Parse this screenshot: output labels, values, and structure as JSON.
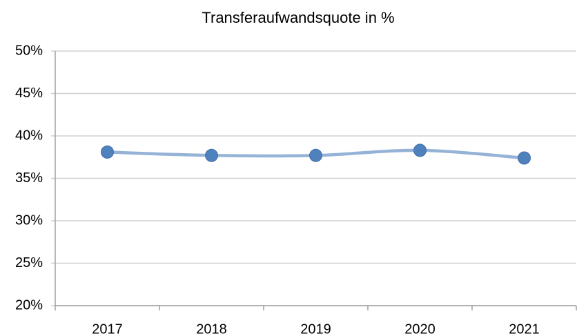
{
  "chart_data": {
    "type": "line",
    "title": "Transferaufwandsquote in %",
    "categories": [
      "2017",
      "2018",
      "2019",
      "2020",
      "2021"
    ],
    "series": [
      {
        "name": "Transferaufwandsquote",
        "line_color": "#95b3d7",
        "color": "#4f81bd",
        "values": [
          38.1,
          37.7,
          37.7,
          38.3,
          37.4
        ]
      }
    ],
    "ylim": [
      20,
      50
    ],
    "yticks": [
      {
        "value": 20,
        "label": "20%"
      },
      {
        "value": 25,
        "label": "25%"
      },
      {
        "value": 30,
        "label": "30%"
      },
      {
        "value": 35,
        "label": "35%"
      },
      {
        "value": 40,
        "label": "40%"
      },
      {
        "value": 45,
        "label": "45%"
      },
      {
        "value": 50,
        "label": "50%"
      }
    ],
    "grid": true
  }
}
